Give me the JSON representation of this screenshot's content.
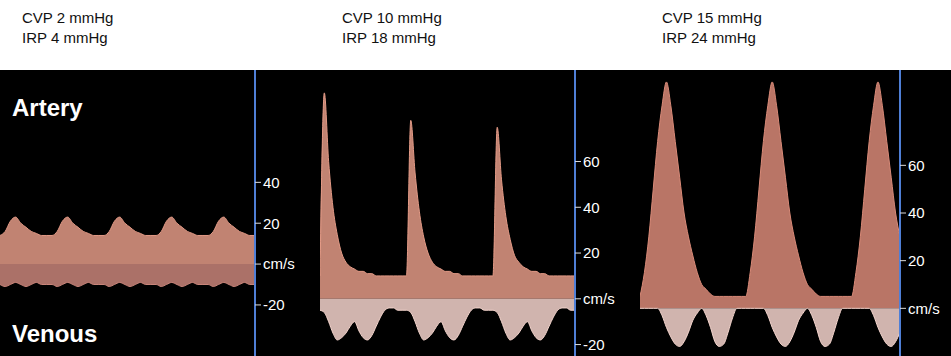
{
  "chart_data": [
    {
      "type": "area",
      "title": "CVP 2 mmHg",
      "subtitle": "IRP 4 mmHg",
      "annotations": [
        "Artery",
        "Venous"
      ],
      "tick_labels": "y",
      "x": [
        0,
        1,
        2,
        3,
        4,
        5,
        6,
        7,
        8,
        9,
        10,
        11,
        12,
        13,
        14,
        15,
        16,
        17,
        18,
        19,
        20,
        21,
        22,
        23,
        24,
        25,
        26,
        27,
        28,
        29,
        30,
        31,
        32,
        33,
        34,
        35,
        36,
        37,
        38,
        39,
        40,
        41,
        42,
        43,
        44,
        45,
        46,
        47,
        48,
        49
      ],
      "xlim": [
        0,
        49
      ],
      "ylim": [
        -45,
        95
      ],
      "yticks": [
        40,
        20,
        {
          "value": 0,
          "label": "cm/s"
        },
        -20
      ],
      "series": [
        {
          "color": "#e39a86",
          "values": [
            14,
            16,
            21,
            23,
            20,
            18,
            16,
            15,
            14,
            14,
            14,
            16,
            21,
            23,
            20,
            18,
            16,
            15,
            14,
            14,
            14,
            16,
            21,
            23,
            20,
            18,
            16,
            15,
            14,
            14,
            14,
            16,
            21,
            23,
            20,
            18,
            16,
            15,
            14,
            14,
            14,
            16,
            21,
            23,
            20,
            18,
            16,
            15,
            14,
            14
          ]
        },
        {
          "color": "#c9857a",
          "values": [
            -10,
            -11,
            -10,
            -9,
            -10,
            -11,
            -10,
            -9,
            -10,
            -10,
            -10,
            -11,
            -10,
            -9,
            -10,
            -11,
            -10,
            -9,
            -10,
            -10,
            -10,
            -11,
            -10,
            -9,
            -10,
            -11,
            -10,
            -9,
            -10,
            -10,
            -10,
            -11,
            -10,
            -9,
            -10,
            -11,
            -10,
            -9,
            -10,
            -10,
            -10,
            -11,
            -10,
            -9,
            -10,
            -11,
            -10,
            -9,
            -10,
            -10
          ]
        }
      ]
    },
    {
      "type": "area",
      "title": "CVP 10 mmHg",
      "subtitle": "IRP 18 mmHg",
      "tick_labels": "y",
      "x": [
        0,
        1,
        2,
        3,
        4,
        5,
        6,
        7,
        8,
        9,
        10,
        11,
        12,
        13,
        14,
        15,
        16,
        17,
        18,
        19,
        20,
        21,
        22,
        23,
        24,
        25,
        26,
        27,
        28,
        29,
        30,
        31,
        32,
        33,
        34,
        35,
        36,
        37,
        38,
        39,
        40,
        41,
        42,
        43,
        44,
        45,
        46,
        47,
        48,
        49,
        50,
        51,
        52,
        53,
        54,
        55,
        56,
        57,
        58,
        59
      ],
      "xlim": [
        0,
        59
      ],
      "ylim": [
        -25,
        100
      ],
      "yticks": [
        60,
        40,
        20,
        {
          "value": 0,
          "label": "cm/s"
        },
        -20
      ],
      "series": [
        {
          "color": "#e39a86",
          "values": [
            10,
            90,
            60,
            40,
            28,
            20,
            16,
            14,
            13,
            12,
            12,
            11,
            11,
            10,
            10,
            10,
            10,
            10,
            10,
            10,
            10,
            78,
            55,
            38,
            27,
            20,
            16,
            14,
            13,
            12,
            12,
            11,
            11,
            10,
            10,
            10,
            10,
            10,
            10,
            10,
            10,
            75,
            52,
            36,
            26,
            19,
            16,
            14,
            13,
            12,
            12,
            11,
            11,
            10,
            10,
            10,
            10,
            10,
            10,
            10
          ]
        },
        {
          "color": "#f4d4cc",
          "values": [
            -5,
            -6,
            -10,
            -15,
            -18,
            -17,
            -15,
            -12,
            -10,
            -14,
            -17,
            -18,
            -16,
            -12,
            -8,
            -5,
            -4,
            -4,
            -5,
            -5,
            -5,
            -6,
            -10,
            -15,
            -18,
            -17,
            -15,
            -12,
            -10,
            -14,
            -17,
            -18,
            -16,
            -12,
            -8,
            -5,
            -4,
            -4,
            -5,
            -5,
            -5,
            -6,
            -10,
            -15,
            -18,
            -17,
            -15,
            -12,
            -10,
            -14,
            -17,
            -18,
            -16,
            -12,
            -8,
            -5,
            -4,
            -4,
            -5,
            -5
          ]
        }
      ]
    },
    {
      "type": "area",
      "title": "CVP 15 mmHg",
      "subtitle": "IRP 24 mmHg",
      "tick_labels": "y",
      "x": [
        0,
        1,
        2,
        3,
        4,
        5,
        6,
        7,
        8,
        9,
        10,
        11,
        12,
        13,
        14,
        15,
        16,
        17,
        18,
        19,
        20,
        21,
        22,
        23,
        24,
        25,
        26,
        27,
        28,
        29,
        30,
        31,
        32,
        33,
        34,
        35,
        36,
        37,
        38,
        39,
        40,
        41,
        42,
        43,
        44,
        45,
        46,
        47,
        48,
        49,
        50,
        51,
        52,
        53,
        54,
        55,
        56,
        57,
        58,
        59
      ],
      "xlim": [
        0,
        59
      ],
      "ylim": [
        -20,
        100
      ],
      "yticks": [
        60,
        40,
        20,
        {
          "value": 0,
          "label": "cm/s"
        }
      ],
      "series": [
        {
          "color": "#d98a78",
          "values": [
            5,
            15,
            30,
            50,
            70,
            85,
            95,
            85,
            70,
            55,
            40,
            30,
            22,
            15,
            10,
            8,
            6,
            5,
            5,
            5,
            5,
            5,
            5,
            5,
            5,
            15,
            30,
            50,
            70,
            85,
            95,
            85,
            70,
            55,
            40,
            30,
            22,
            15,
            10,
            8,
            6,
            5,
            5,
            5,
            5,
            5,
            5,
            5,
            5,
            15,
            30,
            50,
            70,
            85,
            95,
            85,
            70,
            55,
            40,
            30
          ]
        },
        {
          "color": "#f4d4cc",
          "values": [
            0,
            0,
            0,
            0,
            0,
            -3,
            -8,
            -12,
            -15,
            -16,
            -14,
            -10,
            -5,
            -2,
            0,
            -3,
            -8,
            -14,
            -16,
            -15,
            -10,
            -4,
            0,
            0,
            0,
            0,
            0,
            0,
            0,
            -3,
            -8,
            -12,
            -15,
            -16,
            -14,
            -10,
            -5,
            -2,
            0,
            -3,
            -8,
            -14,
            -16,
            -15,
            -10,
            -4,
            0,
            0,
            0,
            0,
            0,
            0,
            0,
            -3,
            -8,
            -12,
            -15,
            -16,
            -14,
            -10
          ]
        }
      ]
    }
  ]
}
